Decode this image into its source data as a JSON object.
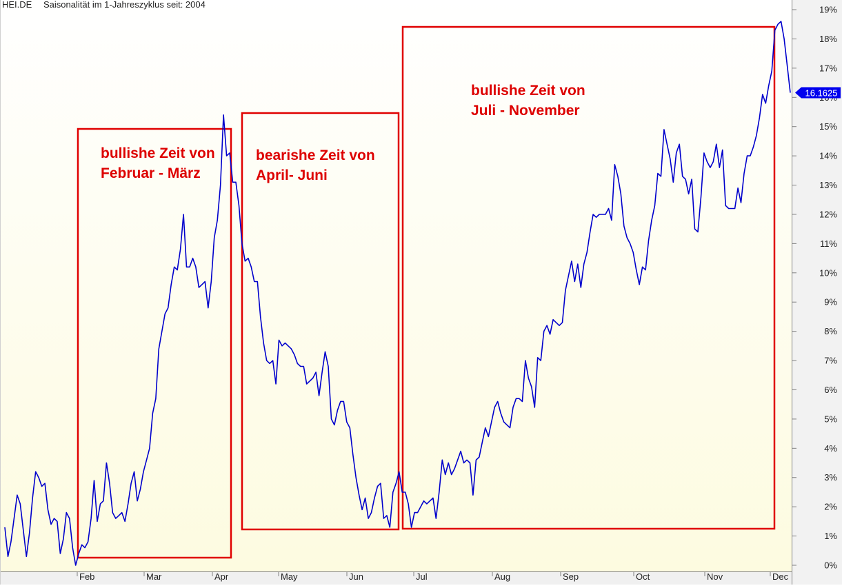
{
  "header": {
    "symbol": "HEI.DE",
    "subtitle": "Saisonalität im 1-Jahreszyklus seit: 2004"
  },
  "colors": {
    "line": "#0000cc",
    "box": "#e00000",
    "annotation": "#dd0000",
    "background_top": "#ffffff",
    "background_bottom": "#fdfbe0",
    "last_value_badge": "#0000ee"
  },
  "chart_data": {
    "type": "line",
    "title": "Saisonalität im 1-Jahreszyklus seit: 2004",
    "symbol": "HEI.DE",
    "ylim": [
      -0.2,
      19.3
    ],
    "y_tick_labels": [
      "0%",
      "1%",
      "2%",
      "3%",
      "4%",
      "5%",
      "6%",
      "7%",
      "8%",
      "9%",
      "10%",
      "11%",
      "12%",
      "13%",
      "14%",
      "15%",
      "16%",
      "17%",
      "18%",
      "19%"
    ],
    "x_tick_labels": [
      "Feb",
      "Mar",
      "Apr",
      "May",
      "Jun",
      "Jul",
      "Aug",
      "Sep",
      "Oct",
      "Nov",
      "Dec"
    ],
    "last_value_label": "16.1625",
    "series": [
      {
        "values": [
          1.3,
          0.3,
          0.8,
          1.6,
          2.4,
          2.1,
          1.2,
          0.3,
          1.1,
          2.3,
          3.2,
          3.0,
          2.7,
          2.8,
          1.9,
          1.4,
          1.6,
          1.5,
          0.4,
          0.9,
          1.8,
          1.6,
          0.6,
          0.0,
          0.4,
          0.7,
          0.6,
          0.8,
          1.6,
          2.9,
          1.5,
          2.1,
          2.2,
          3.5,
          2.8,
          1.8,
          1.6,
          1.7,
          1.8,
          1.5,
          2.1,
          2.8,
          3.2,
          2.2,
          2.6,
          3.2,
          3.6,
          4.0,
          5.2,
          5.7,
          7.4,
          8.0,
          8.6,
          8.8,
          9.6,
          10.2,
          10.1,
          10.8,
          12.0,
          10.2,
          10.2,
          10.5,
          10.2,
          9.5,
          9.6,
          9.7,
          8.8,
          9.7,
          11.2,
          11.8,
          13.0,
          15.4,
          14.0,
          14.1,
          13.1,
          13.1,
          12.3,
          11.0,
          10.4,
          10.5,
          10.2,
          9.7,
          9.7,
          8.5,
          7.6,
          7.0,
          6.9,
          7.0,
          6.2,
          7.7,
          7.5,
          7.6,
          7.5,
          7.4,
          7.2,
          6.9,
          6.8,
          6.8,
          6.2,
          6.3,
          6.4,
          6.6,
          5.8,
          6.6,
          7.3,
          6.8,
          5.0,
          4.8,
          5.3,
          5.6,
          5.6,
          4.9,
          4.7,
          3.8,
          3.0,
          2.4,
          1.9,
          2.3,
          1.6,
          1.8,
          2.3,
          2.7,
          2.8,
          1.6,
          1.7,
          1.3,
          2.5,
          2.8,
          3.2,
          2.5,
          2.5,
          2.1,
          1.3,
          1.8,
          1.8,
          2.0,
          2.2,
          2.1,
          2.2,
          2.3,
          1.6,
          2.5,
          3.6,
          3.1,
          3.5,
          3.1,
          3.3,
          3.6,
          3.9,
          3.5,
          3.6,
          3.5,
          2.4,
          3.6,
          3.7,
          4.2,
          4.7,
          4.4,
          4.9,
          5.4,
          5.6,
          5.2,
          4.9,
          4.8,
          4.7,
          5.4,
          5.7,
          5.7,
          5.6,
          7.0,
          6.4,
          6.1,
          5.4,
          7.1,
          7.0,
          8.0,
          8.2,
          7.9,
          8.4,
          8.3,
          8.2,
          8.3,
          9.4,
          9.9,
          10.4,
          9.7,
          10.3,
          9.5,
          10.3,
          10.7,
          11.4,
          12.0,
          11.9,
          12.0,
          12.0,
          12.0,
          12.2,
          11.8,
          13.7,
          13.3,
          12.7,
          11.6,
          11.2,
          11.0,
          10.7,
          10.1,
          9.6,
          10.2,
          10.1,
          11.1,
          11.8,
          12.3,
          13.4,
          13.3,
          14.9,
          14.4,
          13.9,
          13.1,
          14.1,
          14.4,
          13.3,
          13.2,
          12.7,
          13.2,
          11.5,
          11.4,
          12.6,
          14.1,
          13.8,
          13.6,
          13.8,
          14.4,
          13.6,
          14.2,
          12.3,
          12.2,
          12.2,
          12.2,
          12.9,
          12.4,
          13.4,
          14.0,
          14.0,
          14.3,
          14.7,
          15.3,
          16.1,
          15.8,
          16.4,
          16.9,
          18.3,
          18.5,
          18.6,
          18.0,
          17.1,
          16.16
        ]
      }
    ],
    "annotations": [
      {
        "lines": [
          "bullishe Zeit von",
          "Februar - März"
        ]
      },
      {
        "lines": [
          "bearishe Zeit von",
          "April- Juni"
        ]
      },
      {
        "lines": [
          "bullishe Zeit von",
          "Juli - November"
        ]
      }
    ]
  }
}
